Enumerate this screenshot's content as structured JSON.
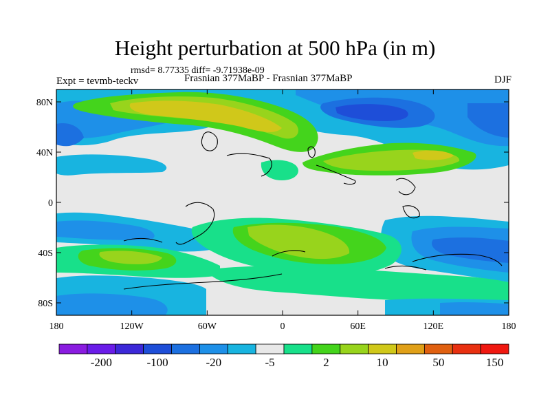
{
  "title": "Height perturbation at 500 hPa (in m)",
  "stats": "rmsd= 8.77335 diff= -9.71938e-09",
  "experiment": "Expt = tevmb-teckv",
  "subtitle": "Frasnian 377MaBP - Frasnian 377MaBP",
  "season": "DJF",
  "y_ticks": [
    "80N",
    "40N",
    "0",
    "40S",
    "80S"
  ],
  "x_ticks": [
    "180",
    "120W",
    "60W",
    "0",
    "60E",
    "120E",
    "180"
  ],
  "colorbar": {
    "colors": [
      "#8a1ce0",
      "#6a1ce8",
      "#3c28d8",
      "#1e4ed8",
      "#1c70e0",
      "#1e90e8",
      "#18b4e0",
      "#e8e8e8",
      "#18e08a",
      "#44d41c",
      "#98d41c",
      "#d0c81a",
      "#e0a018",
      "#e06010",
      "#e83010",
      "#f01810"
    ],
    "labels": [
      {
        "text": "-200",
        "boundary": 2
      },
      {
        "text": "-100",
        "boundary": 4
      },
      {
        "text": "-20",
        "boundary": 6
      },
      {
        "text": "-5",
        "boundary": 8
      },
      {
        "text": "2",
        "boundary": 10
      },
      {
        "text": "10",
        "boundary": 12
      },
      {
        "text": "50",
        "boundary": 14
      },
      {
        "text": "150",
        "boundary": 16
      }
    ]
  }
}
